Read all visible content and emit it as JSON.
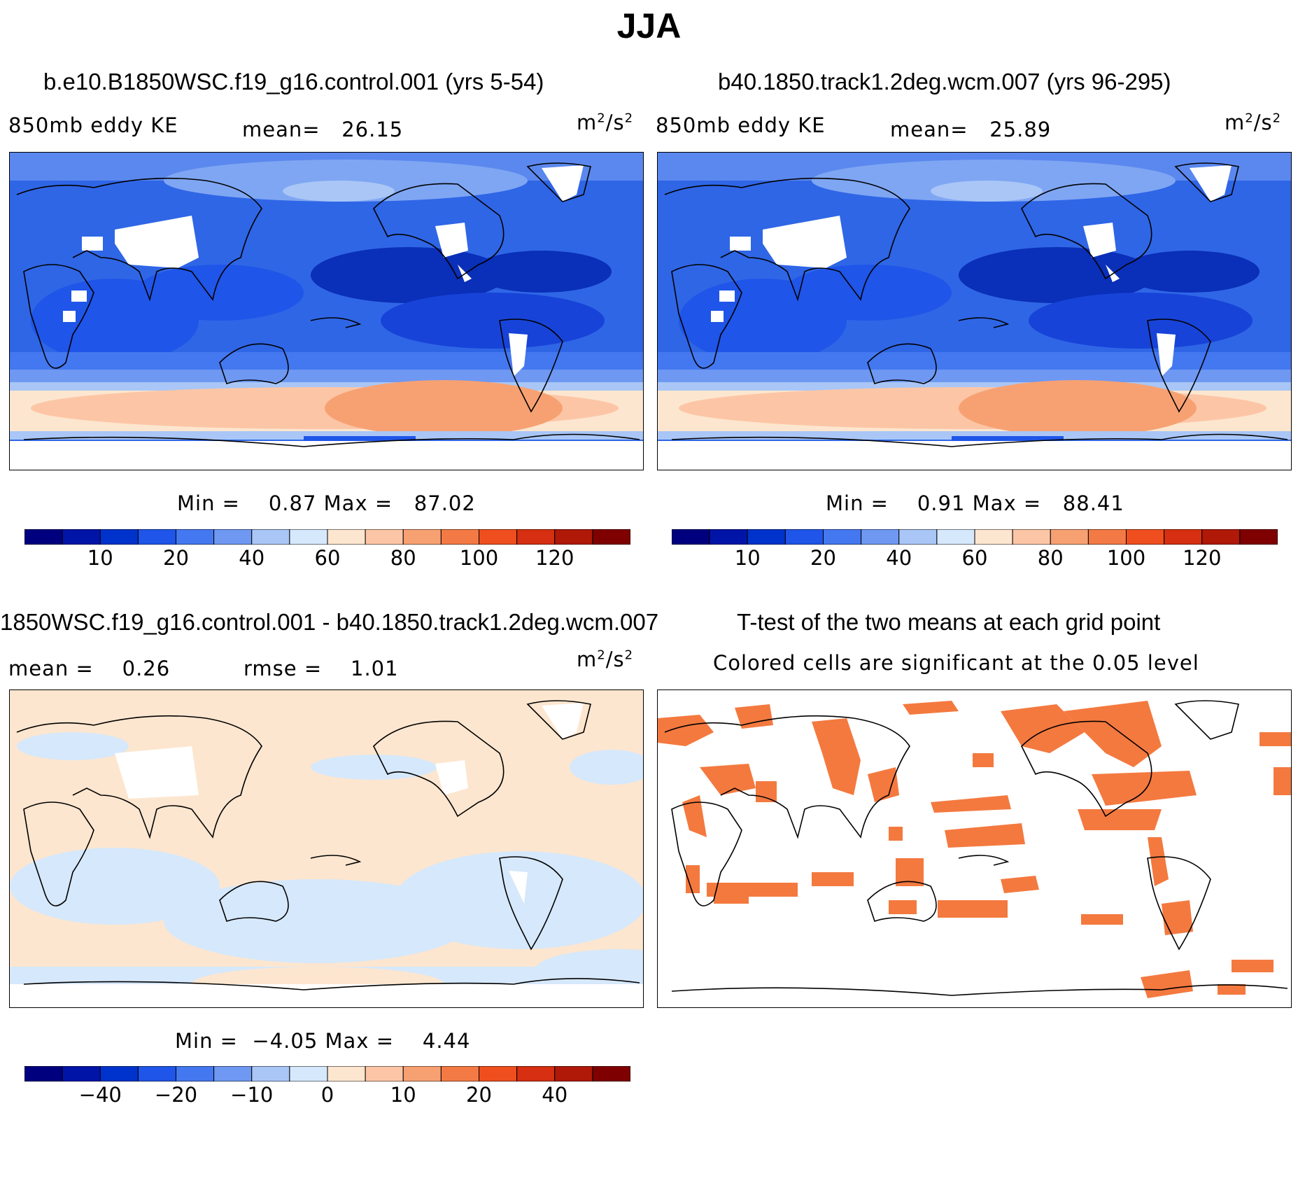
{
  "title": "JJA",
  "unit_label": "m²/s²",
  "panels": [
    {
      "id": "top-left",
      "title": "b.e10.B1850WSC.f19_g16.control.001 (yrs 5-54)",
      "variable": "850mb eddy KE",
      "mean_label": "mean=",
      "mean": "26.15",
      "min_label": "Min =",
      "min": "0.87",
      "max_label": "Max =",
      "max": "87.02"
    },
    {
      "id": "top-right",
      "title": "b40.1850.track1.2deg.wcm.007 (yrs 96-295)",
      "variable": "850mb eddy KE",
      "mean_label": "mean=",
      "mean": "25.89",
      "min_label": "Min =",
      "min": "0.91",
      "max_label": "Max =",
      "max": "88.41"
    },
    {
      "id": "bottom-left",
      "title": "1850WSC.f19_g16.control.001 - b40.1850.track1.2deg.wcm.007",
      "mean_label": "mean =",
      "mean": "0.26",
      "rmse_label": "rmse =",
      "rmse": "1.01",
      "min_label": "Min =",
      "min": "−4.05",
      "max_label": "Max =",
      "max": "4.44"
    },
    {
      "id": "bottom-right",
      "title": "T-test of the two means at each grid point",
      "subtitle": "Colored cells are significant at the 0.05 level"
    }
  ],
  "colorbars": {
    "colors": [
      "#00007f",
      "#0015a8",
      "#0033cc",
      "#1f55e8",
      "#4478f0",
      "#6e98f2",
      "#a9c6f6",
      "#d6e8fb",
      "#fde6cf",
      "#fcc6a6",
      "#f7a173",
      "#f47a45",
      "#ef4f1e",
      "#d62f12",
      "#b01808",
      "#7f0000"
    ],
    "absolute_ticks": [
      "10",
      "20",
      "40",
      "60",
      "80",
      "100",
      "120"
    ],
    "difference_ticks": [
      "−40",
      "−20",
      "−10",
      "0",
      "10",
      "20",
      "40"
    ]
  }
}
